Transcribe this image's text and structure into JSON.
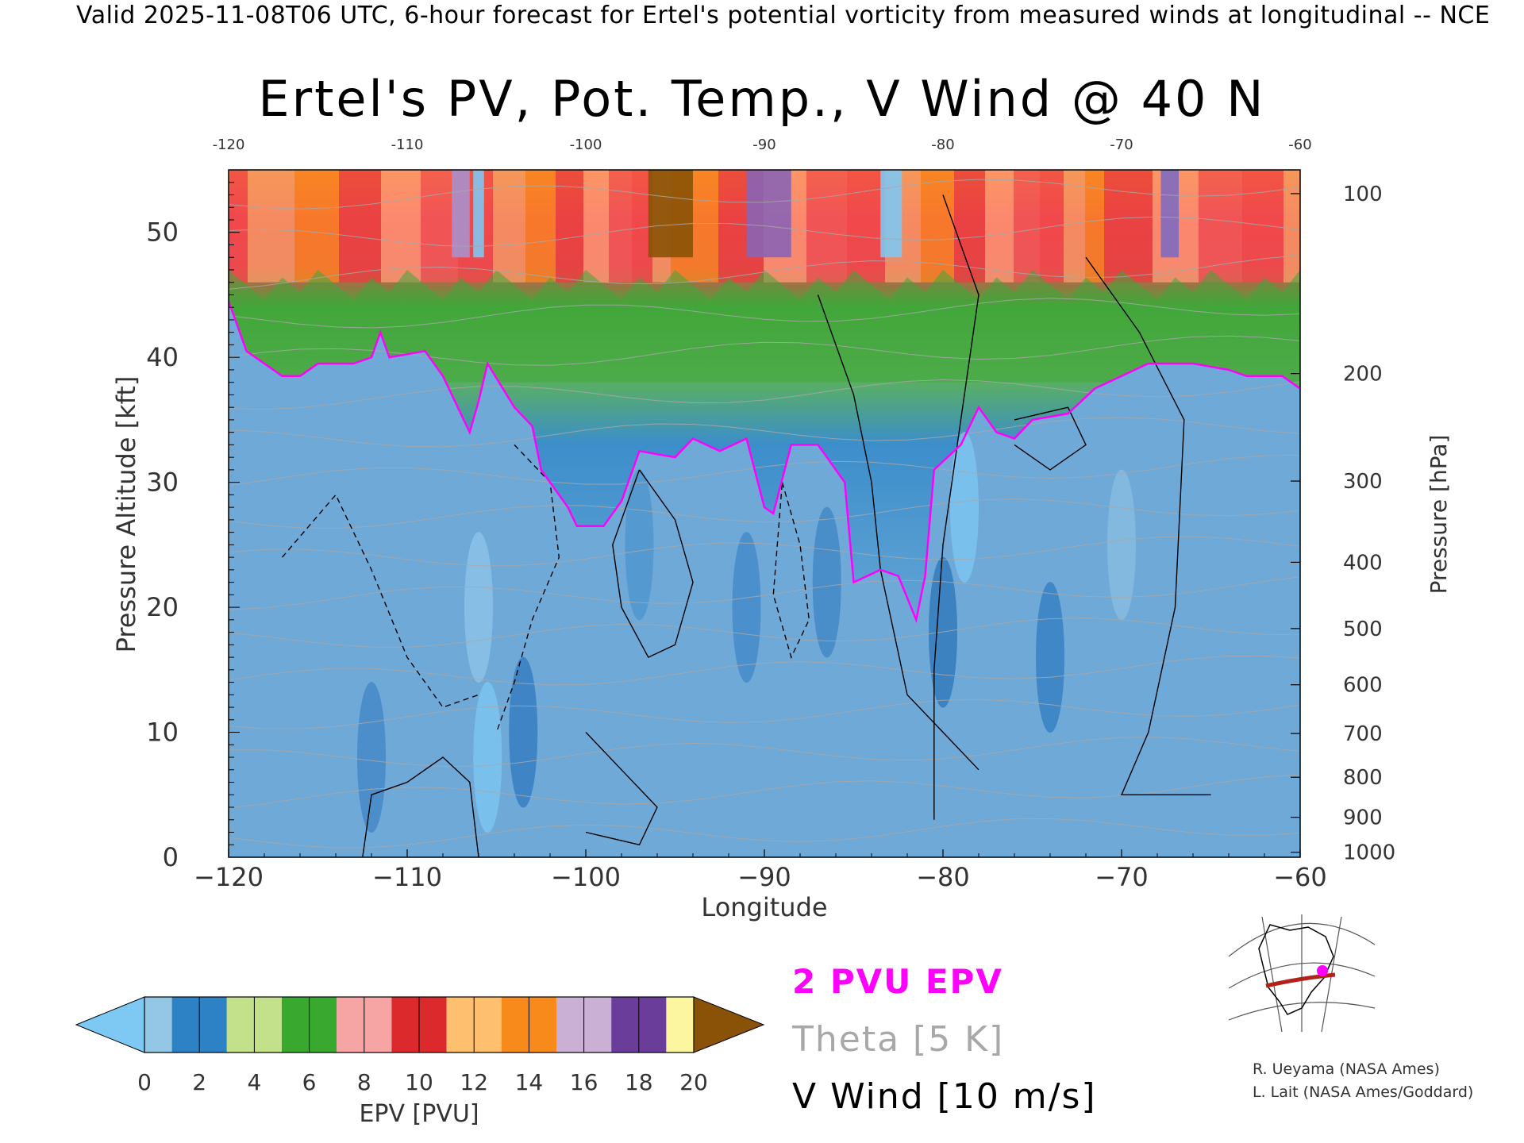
{
  "header": "Valid 2025-11-08T06 UTC, 6-hour forecast for Ertel's potential vorticity from measured winds at longitudinal -- NCE",
  "chart_data": {
    "type": "heatmap",
    "title": "Ertel's PV, Pot. Temp., V Wind @ 40 N",
    "xlabel": "Longitude",
    "ylabel": "Pressure Altitude [kft]",
    "y2label": "Pressure [hPa]",
    "xlim": [
      -120,
      -60
    ],
    "ylim": [
      0,
      55
    ],
    "x_ticks": [
      -120,
      -110,
      -100,
      -90,
      -80,
      -70,
      -60
    ],
    "x_tick_labels": [
      "−120",
      "−110",
      "−100",
      "−90",
      "−80",
      "−70",
      "−60"
    ],
    "x_top_tick_labels": [
      "-120",
      "-110",
      "-100",
      "-90",
      "-80",
      "-70",
      "-60"
    ],
    "y_ticks": [
      0,
      10,
      20,
      30,
      40,
      50
    ],
    "y_tick_labels": [
      "0",
      "10",
      "20",
      "30",
      "40",
      "50"
    ],
    "pressure_ticks": [
      {
        "label": "100",
        "kft": 53.1
      },
      {
        "label": "200",
        "kft": 38.7
      },
      {
        "label": "300",
        "kft": 30.1
      },
      {
        "label": "400",
        "kft": 23.6
      },
      {
        "label": "500",
        "kft": 18.3
      },
      {
        "label": "600",
        "kft": 13.8
      },
      {
        "label": "700",
        "kft": 9.9
      },
      {
        "label": "800",
        "kft": 6.4
      },
      {
        "label": "900",
        "kft": 3.2
      },
      {
        "label": "1000",
        "kft": 0.4
      }
    ],
    "tropopause_2pvu_kft": [
      [
        -120,
        44.5
      ],
      [
        -119,
        40.5
      ],
      [
        -117,
        38.5
      ],
      [
        -116,
        38.5
      ],
      [
        -115,
        39.5
      ],
      [
        -113,
        39.5
      ],
      [
        -112,
        40.0
      ],
      [
        -111.5,
        42.0
      ],
      [
        -111,
        40.0
      ],
      [
        -109,
        40.5
      ],
      [
        -108,
        38.5
      ],
      [
        -107,
        35.5
      ],
      [
        -106.5,
        34.0
      ],
      [
        -106,
        36.5
      ],
      [
        -105.5,
        39.5
      ],
      [
        -104,
        36.0
      ],
      [
        -103,
        34.5
      ],
      [
        -102.5,
        31.0
      ],
      [
        -101,
        28.0
      ],
      [
        -100.5,
        26.5
      ],
      [
        -99,
        26.5
      ],
      [
        -98,
        28.5
      ],
      [
        -97,
        32.5
      ],
      [
        -95,
        32.0
      ],
      [
        -94,
        33.5
      ],
      [
        -92.5,
        32.5
      ],
      [
        -91,
        33.5
      ],
      [
        -90,
        28.0
      ],
      [
        -89.5,
        27.5
      ],
      [
        -88.5,
        33.0
      ],
      [
        -87,
        33.0
      ],
      [
        -85.5,
        30.0
      ],
      [
        -85,
        22.0
      ],
      [
        -83.5,
        23.0
      ],
      [
        -82.5,
        22.5
      ],
      [
        -81.5,
        19.0
      ],
      [
        -81,
        22.5
      ],
      [
        -80.5,
        31.0
      ],
      [
        -79,
        33.0
      ],
      [
        -78,
        36.0
      ],
      [
        -77,
        34.0
      ],
      [
        -76,
        33.5
      ],
      [
        -75,
        35.0
      ],
      [
        -73,
        35.5
      ],
      [
        -71.5,
        37.5
      ],
      [
        -70,
        38.5
      ],
      [
        -68.5,
        39.5
      ],
      [
        -66,
        39.5
      ],
      [
        -64,
        39.0
      ],
      [
        -63,
        38.5
      ],
      [
        -61,
        38.5
      ],
      [
        -60,
        37.5
      ]
    ],
    "colorbar": {
      "label": "EPV [PVU]",
      "ticks": [
        "0",
        "2",
        "4",
        "6",
        "8",
        "10",
        "12",
        "14",
        "16",
        "18",
        "20"
      ],
      "under_color": "#7ec8f4",
      "over_color": "#8a5206",
      "colors": [
        "#94c6e6",
        "#2c82c4",
        "#c3e08a",
        "#38a82e",
        "#f7a4a4",
        "#dc2a2c",
        "#fec06e",
        "#f88a1c",
        "#cbb0d6",
        "#6a3d9a",
        "#fcf6a0",
        "#8a5206"
      ]
    },
    "legend": {
      "epv": "2 PVU EPV",
      "theta": "Theta [5 K]",
      "wind": "V Wind [10 m/s]",
      "epv_color": "#ff00ff",
      "theta_color": "#a8a8a8",
      "wind_color": "#000000"
    }
  },
  "credits": [
    "R. Ueyama (NASA Ames)",
    "L. Lait (NASA Ames/Goddard)"
  ]
}
